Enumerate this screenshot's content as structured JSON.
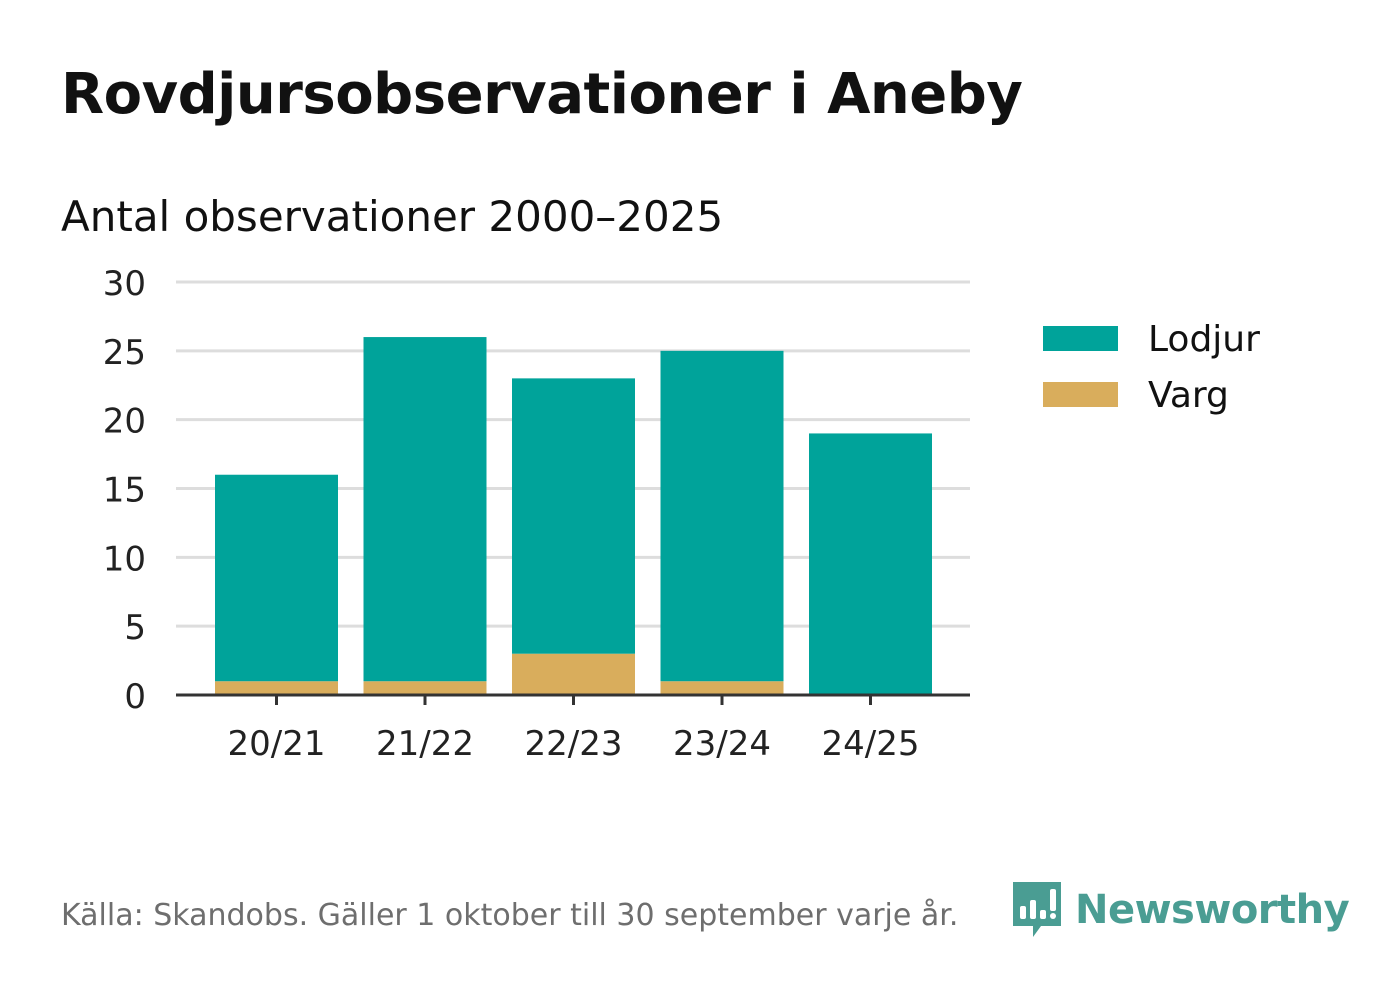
{
  "header": {
    "title": "Rovdjursobservationer i Aneby",
    "subtitle": "Antal observationer 2000–2025"
  },
  "footer": {
    "source": "Källa: Skandobs. Gäller 1 oktober till 30 september varje år.",
    "brand": "Newsworthy",
    "brand_icon": "bar-chart-speech-bubble-icon"
  },
  "colors": {
    "lodjur": "#00a39a",
    "varg": "#d9ad5c",
    "grid": "#dddddd",
    "axis": "#333333",
    "brand": "#4a9d93"
  },
  "chart_data": {
    "type": "bar",
    "stacked": true,
    "categories": [
      "20/21",
      "21/22",
      "22/23",
      "23/24",
      "24/25"
    ],
    "series": [
      {
        "name": "Varg",
        "values": [
          1,
          1,
          3,
          1,
          0
        ]
      },
      {
        "name": "Lodjur",
        "values": [
          15,
          25,
          20,
          24,
          19
        ]
      }
    ],
    "legend": [
      "Lodjur",
      "Varg"
    ],
    "yticks": [
      0,
      5,
      10,
      15,
      20,
      25,
      30
    ],
    "ylim": [
      0,
      30
    ],
    "grid": true,
    "legend_position": "right"
  }
}
